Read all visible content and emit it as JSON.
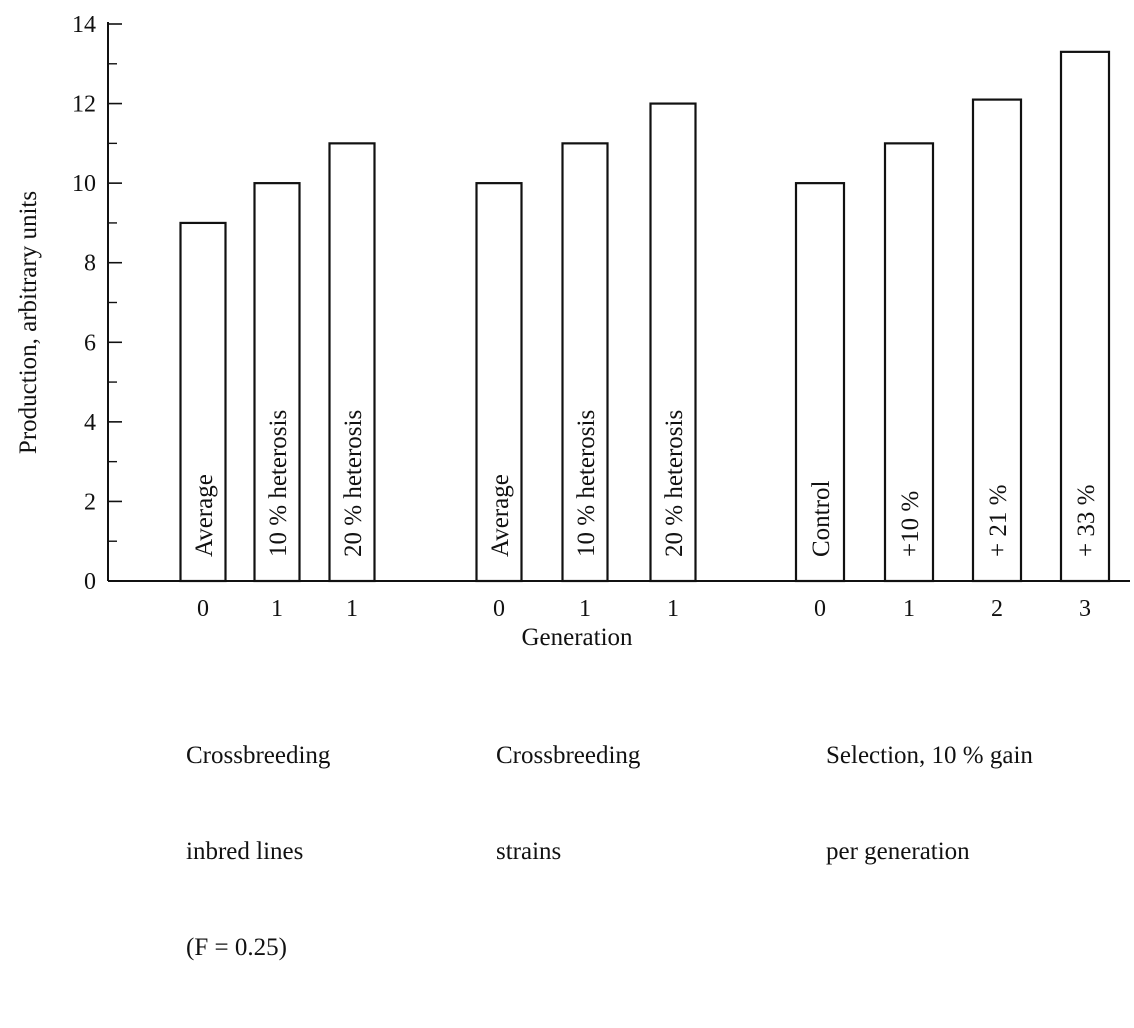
{
  "chart_data": {
    "type": "bar",
    "ylabel": "Production, arbitrary units",
    "xlabel": "Generation",
    "ylim": [
      0,
      14
    ],
    "yticks": [
      0,
      2,
      4,
      6,
      8,
      10,
      12,
      14
    ],
    "grid": false,
    "legend": "none",
    "groups": [
      {
        "caption_lines": [
          "Crossbreeding",
          "inbred lines",
          "(F = 0.25)"
        ],
        "bars": [
          {
            "generation": "0",
            "value": 9,
            "label": "Average"
          },
          {
            "generation": "1",
            "value": 10,
            "label": "10 % heterosis"
          },
          {
            "generation": "1",
            "value": 11,
            "label": "20 % heterosis"
          }
        ]
      },
      {
        "caption_lines": [
          "Crossbreeding",
          "strains"
        ],
        "bars": [
          {
            "generation": "0",
            "value": 10,
            "label": "Average"
          },
          {
            "generation": "1",
            "value": 11,
            "label": "10 % heterosis"
          },
          {
            "generation": "1",
            "value": 12,
            "label": "20 % heterosis"
          }
        ]
      },
      {
        "caption_lines": [
          "Selection, 10 % gain",
          "per generation"
        ],
        "bars": [
          {
            "generation": "0",
            "value": 10,
            "label": "Control"
          },
          {
            "generation": "1",
            "value": 11,
            "label": "+10 %"
          },
          {
            "generation": "2",
            "value": 12.1,
            "label": "+ 21 %"
          },
          {
            "generation": "3",
            "value": 13.3,
            "label": "+ 33 %"
          }
        ]
      }
    ]
  }
}
